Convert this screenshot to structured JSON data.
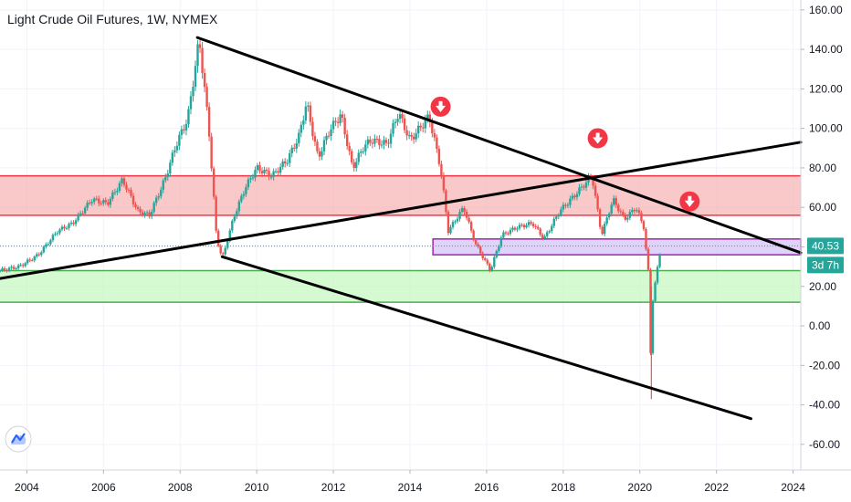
{
  "chart_data": {
    "type": "candlestick",
    "title": "Light Crude Oil Futures, 1W, NYMEX",
    "x_ticks": [
      "2004",
      "2006",
      "2008",
      "2010",
      "2012",
      "2014",
      "2016",
      "2018",
      "2020",
      "2022",
      "2024"
    ],
    "y_ticks": [
      "160.00",
      "140.00",
      "120.00",
      "100.00",
      "80.00",
      "60.00",
      "40.00",
      "20.00",
      "0.00",
      "-20.00",
      "-40.00",
      "-60.00"
    ],
    "xlim": [
      2003.3,
      2024.2
    ],
    "ylim": [
      -73,
      165
    ],
    "grid": true,
    "price_series": [
      [
        2003.3,
        28
      ],
      [
        2003.8,
        30
      ],
      [
        2004.3,
        36
      ],
      [
        2004.8,
        48
      ],
      [
        2005.2,
        52
      ],
      [
        2005.7,
        64
      ],
      [
        2006.1,
        62
      ],
      [
        2006.5,
        74
      ],
      [
        2006.9,
        58
      ],
      [
        2007.2,
        56
      ],
      [
        2007.6,
        74
      ],
      [
        2007.9,
        92
      ],
      [
        2008.2,
        105
      ],
      [
        2008.5,
        145
      ],
      [
        2008.75,
        100
      ],
      [
        2008.95,
        45
      ],
      [
        2009.1,
        34
      ],
      [
        2009.4,
        55
      ],
      [
        2009.7,
        70
      ],
      [
        2010.0,
        80
      ],
      [
        2010.4,
        76
      ],
      [
        2010.8,
        84
      ],
      [
        2011.1,
        96
      ],
      [
        2011.3,
        113
      ],
      [
        2011.6,
        85
      ],
      [
        2011.9,
        99
      ],
      [
        2012.2,
        107
      ],
      [
        2012.5,
        80
      ],
      [
        2012.8,
        91
      ],
      [
        2013.0,
        94
      ],
      [
        2013.4,
        92
      ],
      [
        2013.7,
        108
      ],
      [
        2014.0,
        94
      ],
      [
        2014.5,
        106
      ],
      [
        2014.8,
        80
      ],
      [
        2015.0,
        48
      ],
      [
        2015.4,
        60
      ],
      [
        2015.7,
        42
      ],
      [
        2016.1,
        28
      ],
      [
        2016.4,
        46
      ],
      [
        2016.8,
        50
      ],
      [
        2017.2,
        52
      ],
      [
        2017.5,
        44
      ],
      [
        2017.9,
        58
      ],
      [
        2018.2,
        64
      ],
      [
        2018.75,
        76
      ],
      [
        2019.0,
        46
      ],
      [
        2019.3,
        64
      ],
      [
        2019.6,
        54
      ],
      [
        2019.9,
        60
      ],
      [
        2020.1,
        50
      ],
      [
        2020.25,
        22
      ],
      [
        2020.3,
        -37
      ],
      [
        2020.33,
        12
      ],
      [
        2020.45,
        28
      ],
      [
        2020.55,
        40.53
      ]
    ],
    "trendlines": [
      {
        "name": "upper-descending",
        "from": [
          2008.45,
          146
        ],
        "to": [
          2024.2,
          37
        ]
      },
      {
        "name": "ascending",
        "from": [
          2003.3,
          24
        ],
        "to": [
          2024.2,
          93
        ]
      },
      {
        "name": "lower-descending",
        "from": [
          2009.1,
          35
        ],
        "to": [
          2022.9,
          -47
        ]
      }
    ],
    "zones": [
      {
        "name": "resistance",
        "y_from": 56,
        "y_to": 76,
        "color": "#f7b6b6",
        "edge": "#f23645"
      },
      {
        "name": "support",
        "y_from": 12,
        "y_to": 28,
        "color": "#c7f7c1",
        "edge": "#4caf50"
      },
      {
        "name": "current-range",
        "x_from": 2014.6,
        "x_to": 2024.2,
        "y_from": 36,
        "y_to": 44,
        "color": "#d6c4f5",
        "edge": "#9c27b0"
      }
    ],
    "markers": [
      {
        "name": "down-arrow",
        "x": 2014.8,
        "y": 111
      },
      {
        "name": "down-arrow",
        "x": 2018.9,
        "y": 95
      },
      {
        "name": "down-arrow",
        "x": 2021.3,
        "y": 63
      }
    ],
    "last_price": "40.53",
    "last_price_y": 40.53,
    "countdown": "3d 7h",
    "colors": {
      "up": "#26a69a",
      "down": "#ef5350",
      "badge": "#26a69a",
      "arrow": "#f23645"
    }
  }
}
